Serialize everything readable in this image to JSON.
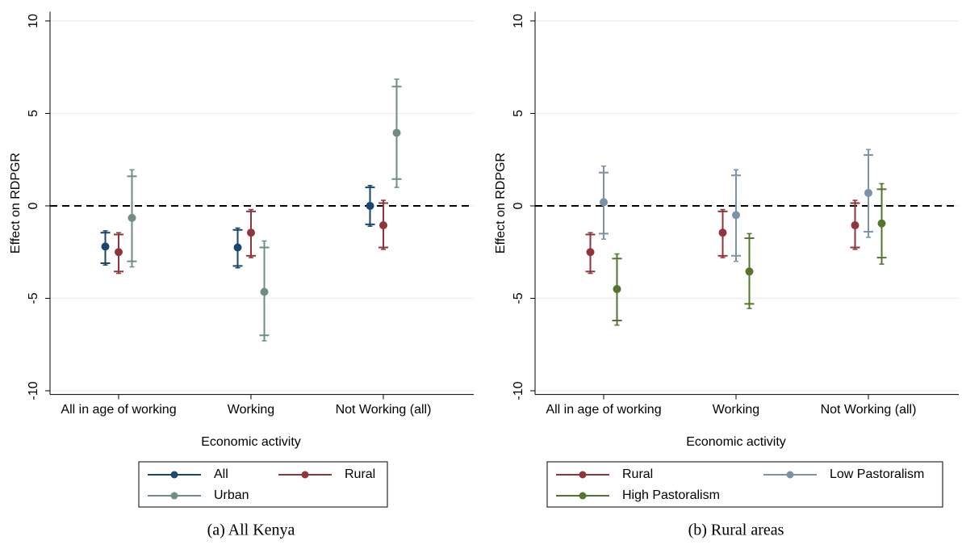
{
  "chart_data": [
    {
      "type": "errorbar",
      "caption": "(a) All Kenya",
      "xlabel": "Economic activity",
      "ylabel": "Effect on RDPGR",
      "categories": [
        "All in age of working",
        "Working",
        "Not Working (all)"
      ],
      "ylim": [
        -10.2,
        10.5
      ],
      "yticks": [
        -10,
        -5,
        0,
        5,
        10
      ],
      "grid": true,
      "reference_line": 0,
      "legend_columns": 2,
      "series": [
        {
          "name": "All",
          "color": "#1a476f",
          "values": [
            -2.2,
            -2.25,
            0.0
          ],
          "ci_low": [
            -3.2,
            -3.35,
            -1.1
          ],
          "ci_high": [
            -1.35,
            -1.2,
            1.1
          ],
          "ci90_low": [
            -3.1,
            -3.25,
            -1.0
          ],
          "ci90_high": [
            -1.45,
            -1.3,
            1.0
          ]
        },
        {
          "name": "Rural",
          "color": "#90353b",
          "values": [
            -2.5,
            -1.45,
            -1.05
          ],
          "ci_low": [
            -3.65,
            -2.8,
            -2.35
          ],
          "ci_high": [
            -1.45,
            -0.2,
            0.3
          ],
          "ci90_low": [
            -3.55,
            -2.7,
            -2.25
          ],
          "ci90_high": [
            -1.55,
            -0.3,
            0.15
          ]
        },
        {
          "name": "Urban",
          "color": "#6e8e84",
          "values": [
            -0.65,
            -4.65,
            3.95
          ],
          "ci_low": [
            -3.3,
            -7.3,
            1.0
          ],
          "ci_high": [
            1.95,
            -1.9,
            6.85
          ],
          "ci90_low": [
            -3.0,
            -7.0,
            1.45
          ],
          "ci90_high": [
            1.6,
            -2.25,
            6.45
          ]
        }
      ]
    },
    {
      "type": "errorbar",
      "caption": "(b) Rural areas",
      "xlabel": "Economic activity",
      "ylabel": "Effect on RDPGR",
      "categories": [
        "All in age of working",
        "Working",
        "Not Working (all)"
      ],
      "ylim": [
        -10.2,
        10.5
      ],
      "yticks": [
        -10,
        -5,
        0,
        5,
        10
      ],
      "grid": true,
      "reference_line": 0,
      "legend_columns": 2,
      "series": [
        {
          "name": "Rural",
          "color": "#90353b",
          "values": [
            -2.5,
            -1.45,
            -1.05
          ],
          "ci_low": [
            -3.65,
            -2.8,
            -2.35
          ],
          "ci_high": [
            -1.45,
            -0.2,
            0.3
          ],
          "ci90_low": [
            -3.55,
            -2.7,
            -2.25
          ],
          "ci90_high": [
            -1.55,
            -0.3,
            0.15
          ]
        },
        {
          "name": "Low Pastoralism",
          "color": "#7b92a8",
          "values": [
            0.2,
            -0.5,
            0.7
          ],
          "ci_low": [
            -1.8,
            -3.0,
            -1.7
          ],
          "ci_high": [
            2.15,
            1.95,
            3.05
          ],
          "ci90_low": [
            -1.5,
            -2.7,
            -1.4
          ],
          "ci90_high": [
            1.8,
            1.65,
            2.75
          ]
        },
        {
          "name": "High Pastoralism",
          "color": "#55752f",
          "values": [
            -4.5,
            -3.55,
            -0.95
          ],
          "ci_low": [
            -6.45,
            -5.55,
            -3.15
          ],
          "ci_high": [
            -2.6,
            -1.5,
            1.2
          ],
          "ci90_low": [
            -6.2,
            -5.3,
            -2.8
          ],
          "ci90_high": [
            -2.85,
            -1.75,
            0.9
          ]
        }
      ]
    }
  ]
}
